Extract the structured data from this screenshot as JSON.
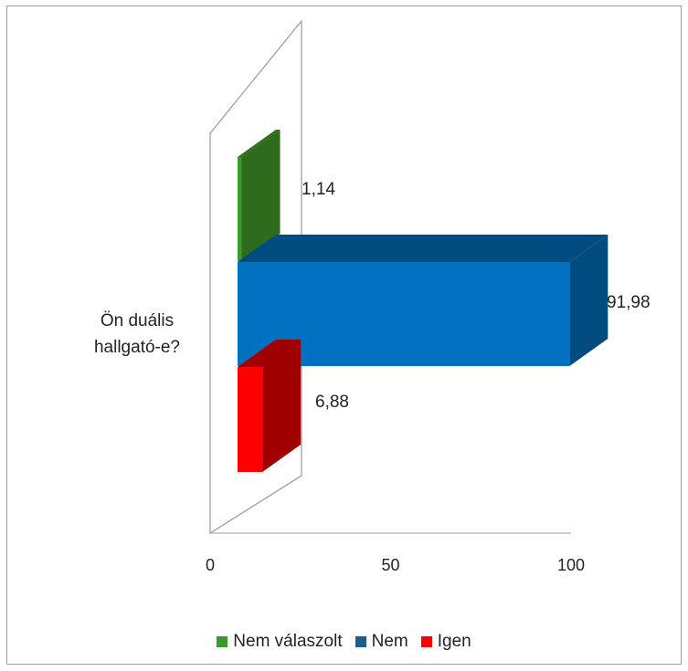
{
  "chart_data": {
    "type": "bar",
    "orientation": "horizontal",
    "three_d": true,
    "categories": [
      "Ön duális hallgató-e?"
    ],
    "category_lines": [
      "Ön duális",
      "hallgató-e?"
    ],
    "series": [
      {
        "name": "Nem válaszolt",
        "values": [
          1.14
        ],
        "label": "1,14",
        "color": "#3b9a2a",
        "side_color": "#2e6b1c"
      },
      {
        "name": "Nem",
        "values": [
          91.98
        ],
        "label": "91,98",
        "color": "#0070c0",
        "side_color": "#004c80"
      },
      {
        "name": "Igen",
        "values": [
          6.88
        ],
        "label": "6,88",
        "color": "#ff0000",
        "side_color": "#a00000"
      }
    ],
    "legend_order": [
      0,
      1,
      2
    ],
    "xlim": [
      0,
      100
    ],
    "xticks": [
      0,
      50,
      100
    ],
    "xtick_labels": [
      "0",
      "50",
      "100"
    ],
    "legend_position": "bottom",
    "grid": false,
    "title": "",
    "xlabel": "",
    "ylabel": ""
  }
}
